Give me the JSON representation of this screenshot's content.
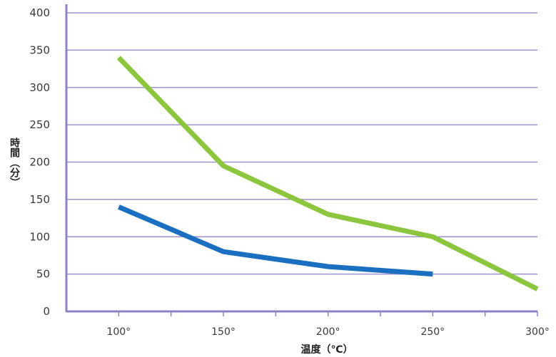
{
  "chart_data": {
    "type": "line",
    "x": [
      100,
      150,
      200,
      250,
      300
    ],
    "x_tick_labels": [
      "100°",
      "150°",
      "200°",
      "250°",
      "300°"
    ],
    "y_ticks": [
      0,
      50,
      100,
      150,
      200,
      250,
      300,
      350,
      400
    ],
    "xlim": [
      75,
      300
    ],
    "ylim": [
      0,
      400
    ],
    "xlabel": "温度（℃）",
    "ylabel": "時間（分）",
    "grid": "horizontal",
    "series": [
      {
        "color": "#8cc63e",
        "x": [
          100,
          150,
          200,
          250,
          300
        ],
        "values": [
          340,
          195,
          130,
          100,
          30
        ]
      },
      {
        "color": "#1a6fc0",
        "x": [
          100,
          150,
          200,
          250
        ],
        "values": [
          140,
          80,
          60,
          50
        ]
      }
    ],
    "colors": {
      "grid": "#9d92cc",
      "axis": "#8f82c4"
    }
  }
}
